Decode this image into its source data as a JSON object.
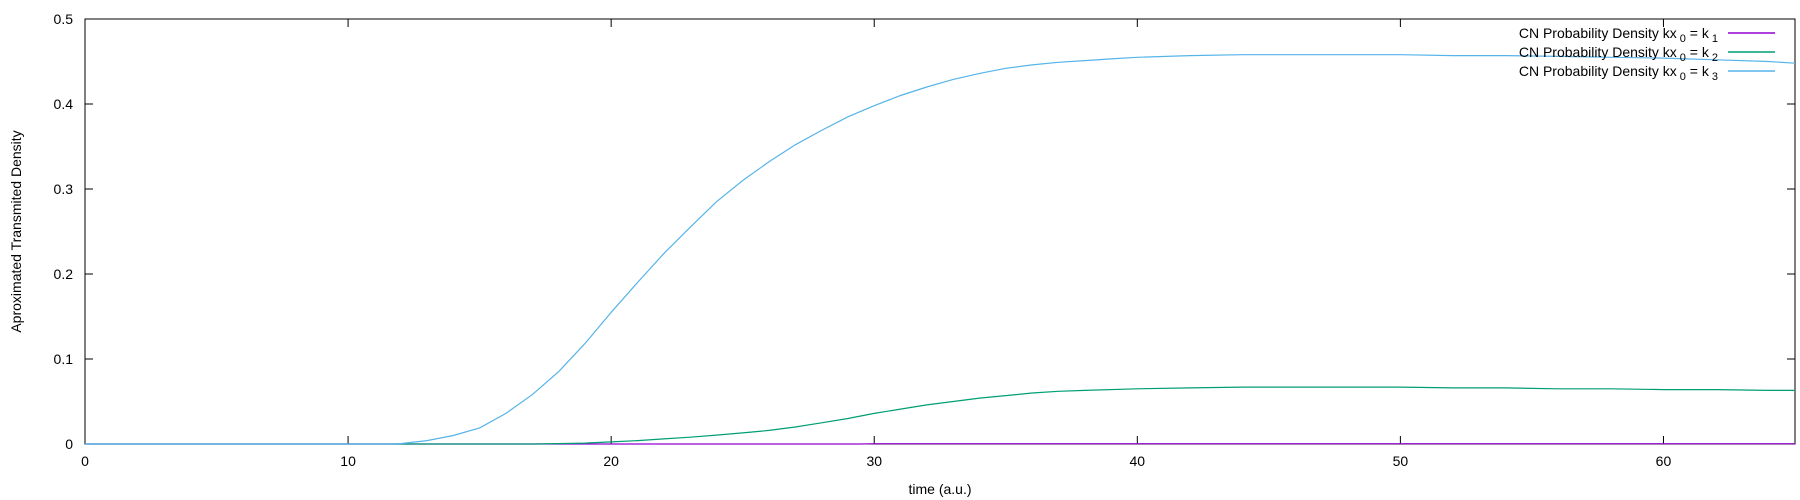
{
  "chart_data": {
    "type": "line",
    "xlabel": "time (a.u.)",
    "ylabel": "Aproximated Transmited Density",
    "xlim": [
      0,
      65
    ],
    "ylim": [
      0,
      0.5
    ],
    "xticks": [
      0,
      10,
      20,
      30,
      40,
      50,
      60
    ],
    "xtick_labels": [
      "0",
      "10",
      "20",
      "30",
      "40",
      "50",
      "60"
    ],
    "yticks": [
      0,
      0.1,
      0.2,
      0.3,
      0.4,
      0.5
    ],
    "ytick_labels": [
      "0",
      "0.1",
      "0.2",
      "0.3",
      "0.4",
      "0.5"
    ],
    "grid": false,
    "legend_position": "top-right",
    "series": [
      {
        "name": "CN Probability Density kx",
        "name_sub1": "0",
        "name_mid": " = k",
        "name_sub2": "1",
        "color": "#9400d3",
        "x": [
          0,
          29.5,
          30,
          35,
          40,
          45,
          50,
          55,
          60,
          65
        ],
        "y": [
          0,
          0,
          0.0003,
          0.0004,
          0.0004,
          0.0004,
          0.0004,
          0.0004,
          0.0004,
          0.0004
        ]
      },
      {
        "name": "CN Probability Density kx",
        "name_sub1": "0",
        "name_mid": " = k",
        "name_sub2": "2",
        "color": "#009e73",
        "x": [
          0,
          17,
          18,
          19,
          20,
          21,
          22,
          23,
          24,
          25,
          26,
          27,
          28,
          29,
          30,
          31,
          32,
          33,
          34,
          35,
          36,
          37,
          38,
          40,
          42,
          44,
          46,
          48,
          50,
          52,
          54,
          56,
          58,
          60,
          62,
          64,
          65
        ],
        "y": [
          0,
          0,
          0.0005,
          0.001,
          0.0025,
          0.004,
          0.006,
          0.008,
          0.0105,
          0.013,
          0.016,
          0.02,
          0.025,
          0.03,
          0.036,
          0.041,
          0.046,
          0.05,
          0.054,
          0.057,
          0.06,
          0.062,
          0.063,
          0.065,
          0.066,
          0.067,
          0.067,
          0.067,
          0.067,
          0.066,
          0.066,
          0.065,
          0.065,
          0.064,
          0.064,
          0.063,
          0.063
        ]
      },
      {
        "name": "CN Probability Density kx",
        "name_sub1": "0",
        "name_mid": " = k",
        "name_sub2": "3",
        "color": "#56b4e9",
        "x": [
          0,
          11.5,
          12,
          13,
          14,
          15,
          16,
          17,
          18,
          19,
          20,
          21,
          22,
          23,
          24,
          25,
          26,
          27,
          28,
          29,
          30,
          31,
          32,
          33,
          34,
          35,
          36,
          37,
          38,
          39,
          40,
          42,
          44,
          46,
          48,
          50,
          52,
          54,
          56,
          58,
          60,
          62,
          64,
          65
        ],
        "y": [
          0,
          0,
          0.0005,
          0.004,
          0.01,
          0.019,
          0.036,
          0.058,
          0.085,
          0.118,
          0.155,
          0.19,
          0.224,
          0.255,
          0.285,
          0.31,
          0.332,
          0.352,
          0.369,
          0.385,
          0.398,
          0.41,
          0.42,
          0.429,
          0.436,
          0.442,
          0.446,
          0.449,
          0.451,
          0.453,
          0.455,
          0.457,
          0.458,
          0.458,
          0.458,
          0.458,
          0.457,
          0.457,
          0.456,
          0.455,
          0.454,
          0.452,
          0.45,
          0.448
        ]
      }
    ]
  }
}
